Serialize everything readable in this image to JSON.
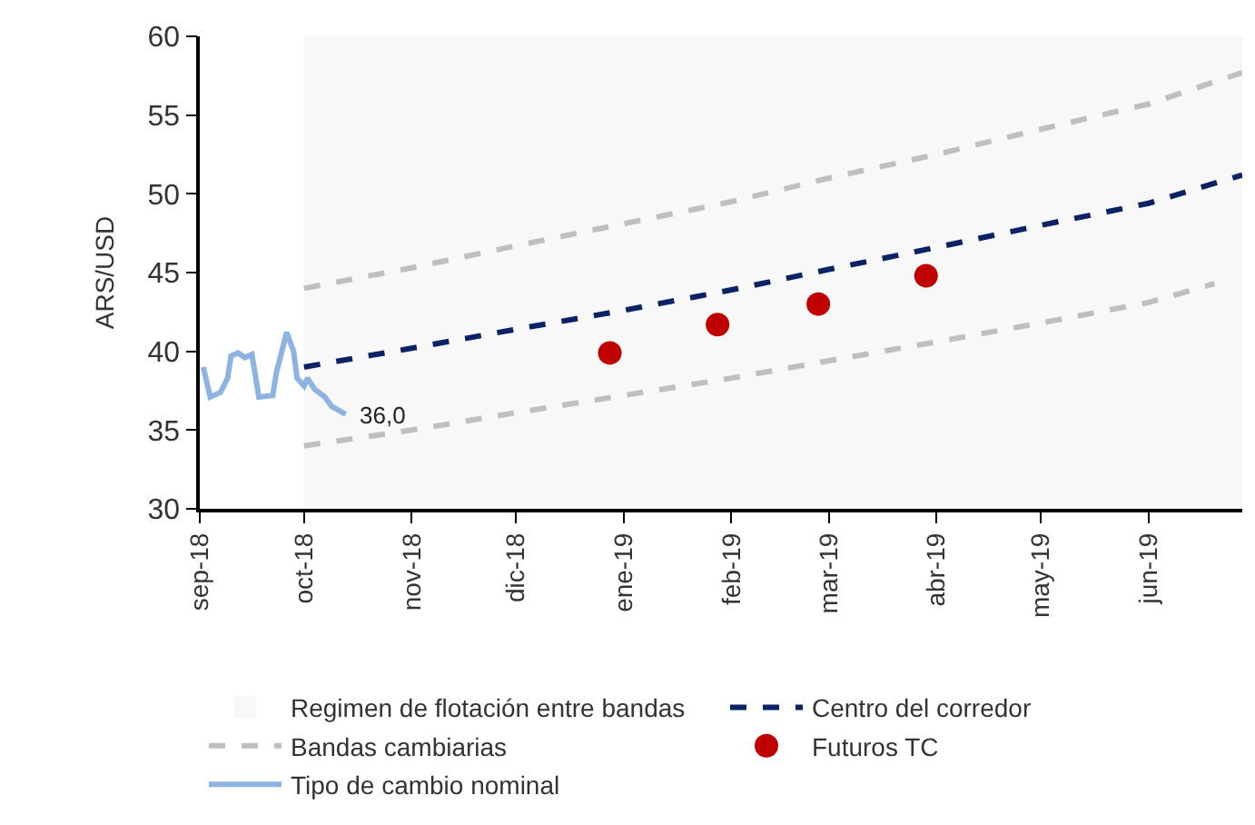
{
  "chart_data": {
    "type": "line",
    "ylabel": "ARS/USD",
    "xlim": [
      "2018-09-01",
      "2019-06-28"
    ],
    "ylim": [
      30,
      60
    ],
    "yticks": [
      30,
      35,
      40,
      45,
      50,
      55,
      60
    ],
    "xticks": [
      {
        "value": "2018-09-01",
        "label": "sep-18"
      },
      {
        "value": "2018-10-01",
        "label": "oct-18"
      },
      {
        "value": "2018-11-01",
        "label": "nov-18"
      },
      {
        "value": "2018-12-01",
        "label": "dic-18"
      },
      {
        "value": "2019-01-01",
        "label": "ene-19"
      },
      {
        "value": "2019-02-01",
        "label": "feb-19"
      },
      {
        "value": "2019-03-01",
        "label": "mar-19"
      },
      {
        "value": "2019-04-01",
        "label": "abr-19"
      },
      {
        "value": "2019-05-01",
        "label": "may-19"
      },
      {
        "value": "2019-06-01",
        "label": "jun-19"
      }
    ],
    "grid": false,
    "legend": "bottom",
    "bands": [
      {
        "axis": "x",
        "from": "2018-10-01",
        "to": "2019-06-28",
        "label": "Regimen de flotación entre bandas",
        "color": "#f8f8f8"
      }
    ],
    "series": [
      {
        "name": "Centro del corredor",
        "color": "#0b2366",
        "line_style": "dashed",
        "marker": "none",
        "x": [
          "2018-10-01",
          "2018-11-01",
          "2018-12-01",
          "2019-01-01",
          "2019-02-01",
          "2019-03-01",
          "2019-04-01",
          "2019-05-01",
          "2019-06-01",
          "2019-06-28"
        ],
        "values": [
          39.0,
          40.2,
          41.4,
          42.6,
          43.9,
          45.2,
          46.6,
          48.0,
          49.4,
          51.2
        ]
      },
      {
        "name": "Bandas cambiarias",
        "color": "#bfbfbf",
        "line_style": "dashed",
        "marker": "none",
        "x": [
          "2018-10-01",
          "2018-11-01",
          "2018-12-01",
          "2019-01-01",
          "2019-02-01",
          "2019-03-01",
          "2019-04-01",
          "2019-05-01",
          "2019-06-01",
          "2019-06-28"
        ],
        "values": [
          44.0,
          45.3,
          46.7,
          48.1,
          49.5,
          51.0,
          52.5,
          54.1,
          55.7,
          57.7
        ]
      },
      {
        "color": "#bfbfbf",
        "line_style": "dashed",
        "marker": "none",
        "x": [
          "2018-10-01",
          "2018-11-01",
          "2018-12-01",
          "2019-01-01",
          "2019-02-01",
          "2019-03-01",
          "2019-04-01",
          "2019-05-01",
          "2019-06-01",
          "2019-06-20"
        ],
        "values": [
          34.0,
          35.0,
          36.1,
          37.2,
          38.3,
          39.4,
          40.6,
          41.8,
          43.1,
          44.3
        ]
      },
      {
        "name": "Futuros TC",
        "type": "scatter",
        "color": "#c00000",
        "marker": "circle",
        "x": [
          "2018-12-28",
          "2019-01-28",
          "2019-02-26",
          "2019-03-29"
        ],
        "values": [
          39.9,
          41.7,
          43.0,
          44.8
        ]
      },
      {
        "name": "Tipo de cambio nominal",
        "color": "#8db3e2",
        "line_style": "solid",
        "marker": "none",
        "x": [
          "2018-09-02",
          "2018-09-04",
          "2018-09-07",
          "2018-09-09",
          "2018-09-10",
          "2018-09-12",
          "2018-09-14",
          "2018-09-16",
          "2018-09-18",
          "2018-09-22",
          "2018-09-23",
          "2018-09-26",
          "2018-09-28",
          "2018-09-29",
          "2018-10-01",
          "2018-10-02",
          "2018-10-04",
          "2018-10-07",
          "2018-10-09",
          "2018-10-13"
        ],
        "values": [
          39.0,
          37.1,
          37.4,
          38.3,
          39.7,
          39.9,
          39.6,
          39.8,
          37.1,
          37.2,
          38.6,
          41.2,
          40.0,
          38.3,
          37.8,
          38.3,
          37.6,
          37.1,
          36.5,
          36.0
        ]
      }
    ],
    "annotations": [
      {
        "text": "36,0",
        "x": "2018-10-13",
        "y": 36.0
      }
    ]
  }
}
